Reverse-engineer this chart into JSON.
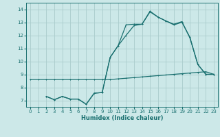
{
  "xlabel": "Humidex (Indice chaleur)",
  "bg_color": "#cce8e8",
  "grid_color": "#aacccc",
  "line_color": "#1a7070",
  "xlim": [
    -0.5,
    23.5
  ],
  "ylim": [
    6.5,
    14.5
  ],
  "xticks": [
    0,
    1,
    2,
    3,
    4,
    5,
    6,
    7,
    8,
    9,
    10,
    11,
    12,
    13,
    14,
    15,
    16,
    17,
    18,
    19,
    20,
    21,
    22,
    23
  ],
  "yticks": [
    7,
    8,
    9,
    10,
    11,
    12,
    13,
    14
  ],
  "line1_x": [
    0,
    1,
    2,
    3,
    4,
    5,
    6,
    7,
    8,
    9,
    10,
    11,
    12,
    13,
    14,
    15,
    16,
    17,
    18,
    19,
    20,
    21,
    22,
    23
  ],
  "line1_y": [
    8.6,
    8.6,
    8.6,
    8.6,
    8.6,
    8.6,
    8.6,
    8.6,
    8.6,
    8.6,
    8.6,
    8.65,
    8.7,
    8.75,
    8.8,
    8.85,
    8.9,
    8.95,
    9.0,
    9.05,
    9.1,
    9.15,
    9.2,
    9.0
  ],
  "line2_x": [
    2,
    3,
    4,
    5,
    6,
    7,
    8,
    9,
    10,
    11,
    12,
    13,
    14,
    15,
    16,
    17,
    18,
    19,
    20,
    21,
    22,
    23
  ],
  "line2_y": [
    7.3,
    7.05,
    7.3,
    7.1,
    7.1,
    6.7,
    7.55,
    7.6,
    10.3,
    11.2,
    12.8,
    12.85,
    12.85,
    13.8,
    13.4,
    13.1,
    12.85,
    13.05,
    11.8,
    9.75,
    9.0,
    9.0
  ],
  "line3_x": [
    2,
    3,
    4,
    5,
    6,
    7,
    8,
    9,
    10,
    11,
    12,
    13,
    14,
    15,
    16,
    17,
    18,
    19,
    20,
    21,
    22,
    23
  ],
  "line3_y": [
    7.3,
    7.05,
    7.3,
    7.1,
    7.1,
    6.7,
    7.55,
    7.6,
    10.3,
    11.2,
    12.0,
    12.75,
    12.85,
    13.85,
    13.4,
    13.1,
    12.8,
    13.0,
    11.85,
    9.75,
    9.0,
    9.0
  ]
}
